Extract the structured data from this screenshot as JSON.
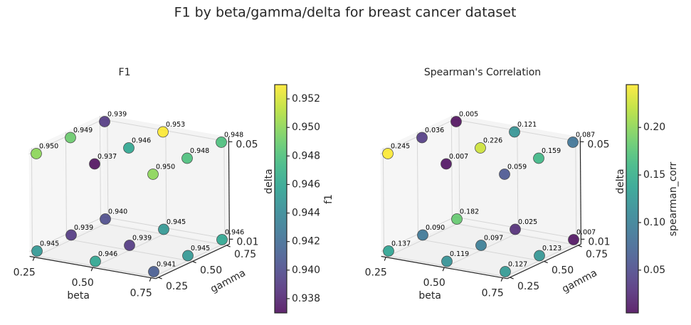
{
  "title": "F1 by beta/gamma/delta for breast cancer dataset",
  "chart_data": [
    {
      "type": "scatter",
      "title": "F1",
      "xlabel": "beta",
      "ylabel": "gamma",
      "zlabel": "delta",
      "colorbar_label": "f1",
      "colormap": "viridis",
      "x": [
        0.25,
        0.5,
        0.75,
        0.25,
        0.5,
        0.75,
        0.25,
        0.5,
        0.75,
        0.25,
        0.5,
        0.75,
        0.25,
        0.5,
        0.75,
        0.25,
        0.5,
        0.75
      ],
      "y": [
        0.25,
        0.25,
        0.25,
        0.5,
        0.5,
        0.5,
        0.75,
        0.75,
        0.75,
        0.25,
        0.25,
        0.25,
        0.5,
        0.5,
        0.5,
        0.75,
        0.75,
        0.75
      ],
      "z": [
        0.01,
        0.01,
        0.01,
        0.01,
        0.01,
        0.01,
        0.01,
        0.01,
        0.01,
        0.05,
        0.05,
        0.05,
        0.05,
        0.05,
        0.05,
        0.05,
        0.05,
        0.05
      ],
      "values": [
        0.945,
        0.946,
        0.941,
        0.939,
        0.939,
        0.945,
        0.94,
        0.945,
        0.946,
        0.95,
        0.937,
        0.95,
        0.949,
        0.946,
        0.948,
        0.939,
        0.953,
        0.948
      ],
      "value_labels": [
        "0.945",
        "0.946",
        "0.941",
        "0.939",
        "0.939",
        "0.945",
        "0.940",
        "0.945",
        "0.946",
        "0.950",
        "0.937",
        "0.950",
        "0.949",
        "0.946",
        "0.948",
        "0.939",
        "0.953",
        "0.948"
      ],
      "xlim": [
        0.23,
        0.77
      ],
      "ylim": [
        0.23,
        0.77
      ],
      "zlim": [
        0.008,
        0.052
      ],
      "xticks": [
        0.25,
        {
          "value": 0.5,
          "label": "0.50"
        },
        0.75
      ],
      "yticks": [
        0.25,
        {
          "value": 0.5,
          "label": "0.50"
        },
        0.75
      ],
      "zticks": [
        0.01,
        0.05
      ],
      "clim": [
        0.937,
        0.953
      ],
      "cticks": [
        0.938,
        {
          "value": 0.94,
          "label": "0.940"
        },
        0.942,
        0.944,
        0.946,
        0.948,
        {
          "value": 0.95,
          "label": "0.950"
        },
        0.952
      ],
      "grid": true
    },
    {
      "type": "scatter",
      "title": "Spearman's Correlation",
      "xlabel": "beta",
      "ylabel": "gamma",
      "zlabel": "delta",
      "colorbar_label": "spearman_corr",
      "colormap": "viridis",
      "x": [
        0.25,
        0.5,
        0.75,
        0.25,
        0.5,
        0.75,
        0.25,
        0.5,
        0.75,
        0.25,
        0.5,
        0.75,
        0.25,
        0.5,
        0.75,
        0.25,
        0.5,
        0.75
      ],
      "y": [
        0.25,
        0.25,
        0.25,
        0.5,
        0.5,
        0.5,
        0.75,
        0.75,
        0.75,
        0.25,
        0.25,
        0.25,
        0.5,
        0.5,
        0.5,
        0.75,
        0.75,
        0.75
      ],
      "z": [
        0.01,
        0.01,
        0.01,
        0.01,
        0.01,
        0.01,
        0.01,
        0.01,
        0.01,
        0.05,
        0.05,
        0.05,
        0.05,
        0.05,
        0.05,
        0.05,
        0.05,
        0.05
      ],
      "values": [
        0.137,
        0.119,
        0.127,
        0.09,
        0.097,
        0.123,
        0.182,
        0.025,
        0.007,
        0.245,
        0.007,
        0.059,
        0.036,
        0.226,
        0.159,
        0.005,
        0.121,
        0.087
      ],
      "value_labels": [
        "0.137",
        "0.119",
        "0.127",
        "0.090",
        "0.097",
        "0.123",
        "0.182",
        "0.025",
        "0.007",
        "0.245",
        "0.007",
        "0.059",
        "0.036",
        "0.226",
        "0.159",
        "0.005",
        "0.121",
        "0.087"
      ],
      "xlim": [
        0.23,
        0.77
      ],
      "ylim": [
        0.23,
        0.77
      ],
      "zlim": [
        0.008,
        0.052
      ],
      "xticks": [
        0.25,
        {
          "value": 0.5,
          "label": "0.50"
        },
        0.75
      ],
      "yticks": [
        0.25,
        {
          "value": 0.5,
          "label": "0.50"
        },
        0.75
      ],
      "zticks": [
        0.01,
        0.05
      ],
      "clim": [
        0.005,
        0.245
      ],
      "cticks": [
        0.05,
        {
          "value": 0.1,
          "label": "0.10"
        },
        0.15,
        {
          "value": 0.2,
          "label": "0.20"
        }
      ],
      "grid": true
    }
  ]
}
